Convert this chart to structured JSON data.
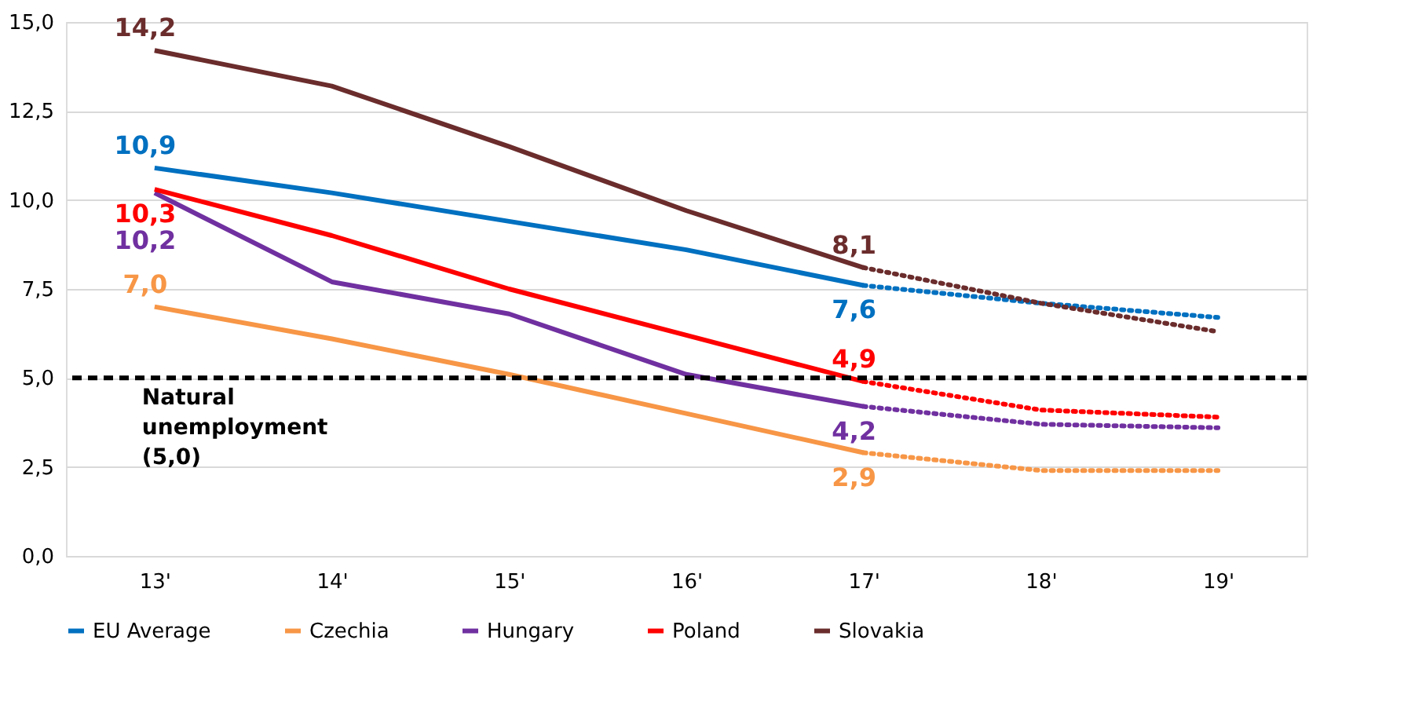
{
  "chart_data": {
    "type": "line",
    "categories": [
      "13'",
      "14'",
      "15'",
      "16'",
      "17'",
      "18'",
      "19'"
    ],
    "ylim": [
      0,
      15
    ],
    "yticks": [
      {
        "value": 0,
        "label": "0,0"
      },
      {
        "value": 2.5,
        "label": "2,5"
      },
      {
        "value": 5,
        "label": "5,0"
      },
      {
        "value": 7.5,
        "label": "7,5"
      },
      {
        "value": 10,
        "label": "10,0"
      },
      {
        "value": 12.5,
        "label": "12,5"
      },
      {
        "value": 15,
        "label": "15,0"
      }
    ],
    "grid": "y",
    "legend": "bottom",
    "marker": "none",
    "series": [
      {
        "name": "EU Average",
        "color": "#0070c0",
        "line_style": "solid",
        "values": [
          10.9,
          10.2,
          9.4,
          8.6,
          7.6,
          null,
          null
        ],
        "value_labels": [
          "10,9",
          null,
          null,
          null,
          "7,6",
          null,
          null
        ]
      },
      {
        "name": "Czechia",
        "color": "#f79646",
        "line_style": "solid",
        "values": [
          7.0,
          6.1,
          5.1,
          4.0,
          2.9,
          null,
          null
        ],
        "value_labels": [
          "7,0",
          null,
          null,
          null,
          "2,9",
          null,
          null
        ]
      },
      {
        "name": "Hungary",
        "color": "#7030a0",
        "line_style": "solid",
        "values": [
          10.2,
          7.7,
          6.8,
          5.1,
          4.2,
          null,
          null
        ],
        "value_labels": [
          "10,2",
          null,
          null,
          null,
          "4,2",
          null,
          null
        ]
      },
      {
        "name": "Poland",
        "color": "#ff0000",
        "line_style": "solid",
        "values": [
          10.3,
          9.0,
          7.5,
          6.2,
          4.9,
          null,
          null
        ],
        "value_labels": [
          "10,3",
          null,
          null,
          null,
          "4,9",
          null,
          null
        ]
      },
      {
        "name": "Slovakia",
        "color": "#6b2c2c",
        "line_style": "solid",
        "values": [
          14.2,
          13.2,
          11.5,
          9.7,
          8.1,
          null,
          null
        ],
        "value_labels": [
          "14,2",
          null,
          null,
          null,
          "8,1",
          null,
          null
        ]
      },
      {
        "color": "#0070c0",
        "line_style": "dotted",
        "values": [
          null,
          null,
          null,
          null,
          7.6,
          7.1,
          6.7
        ]
      },
      {
        "color": "#f79646",
        "line_style": "dotted",
        "values": [
          null,
          null,
          null,
          null,
          2.9,
          2.4,
          2.4
        ]
      },
      {
        "color": "#7030a0",
        "line_style": "dotted",
        "values": [
          null,
          null,
          null,
          null,
          4.2,
          3.7,
          3.6
        ]
      },
      {
        "color": "#ff0000",
        "line_style": "dotted",
        "values": [
          null,
          null,
          null,
          null,
          4.9,
          4.1,
          3.9
        ]
      },
      {
        "color": "#6b2c2c",
        "line_style": "dotted",
        "values": [
          null,
          null,
          null,
          null,
          8.1,
          7.1,
          6.3
        ]
      }
    ],
    "ref_lines": [
      {
        "axis": "y",
        "value": 5,
        "label": "Natural unemployment (5,0)",
        "color": "#000000",
        "line_style": "dashed"
      }
    ]
  }
}
